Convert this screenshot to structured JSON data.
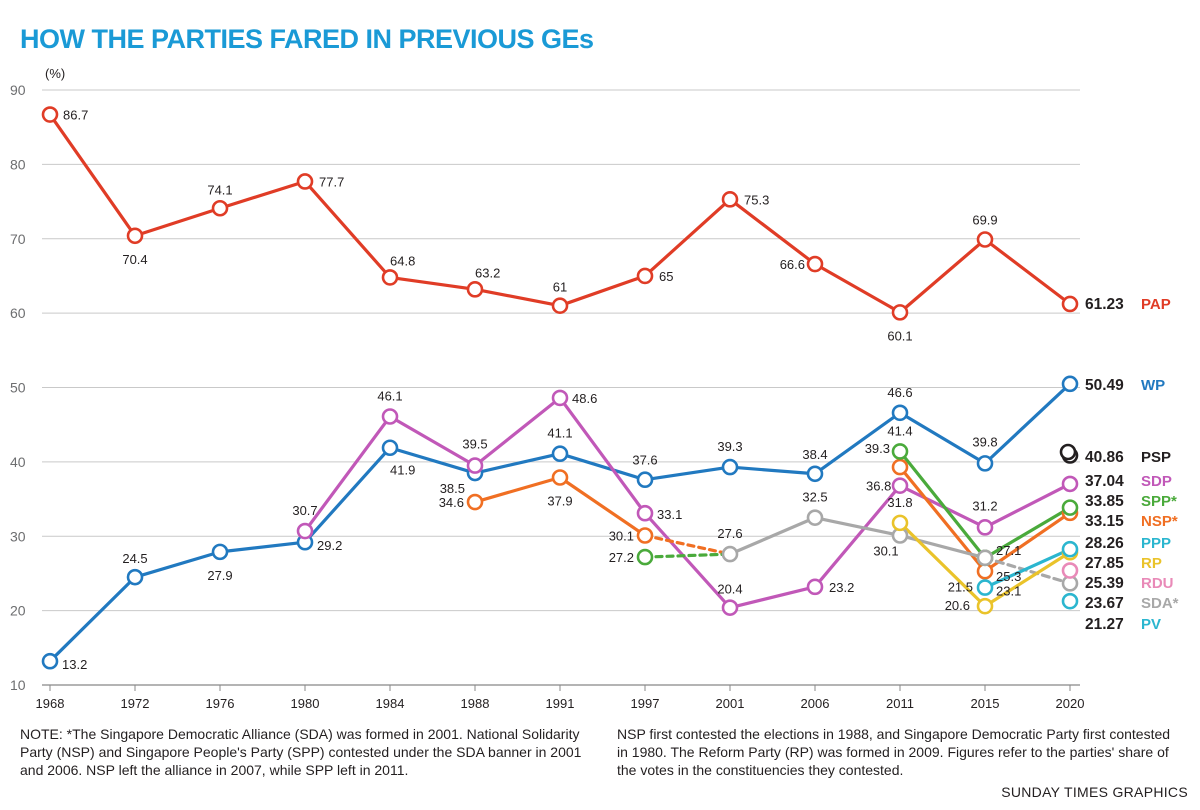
{
  "title": "HOW THE PARTIES FARED IN PREVIOUS GEs",
  "note_left": "NOTE: *The Singapore Democratic Alliance (SDA) was formed in 2001. National Solidarity Party (NSP) and Singapore People's Party (SPP) contested under the SDA banner in 2001 and 2006. NSP left the alliance in 2007, while SPP left in 2011.",
  "note_right": "NSP first contested the elections in 1988, and Singapore Democratic Party first contested in 1980. The Reform Party (RP) was formed in 2009. Figures refer to the parties' share of the votes in the constituencies they contested.",
  "credit": "SUNDAY TIMES GRAPHICS",
  "chart_data": {
    "type": "line",
    "title": "HOW THE PARTIES FARED IN PREVIOUS GEs",
    "ylabel": "(%)",
    "xlabel": "",
    "ylim": [
      10,
      90
    ],
    "yticks": [
      10,
      20,
      30,
      40,
      50,
      60,
      70,
      80,
      90
    ],
    "grid": true,
    "categories": [
      "1968",
      "1972",
      "1976",
      "1980",
      "1984",
      "1988",
      "1991",
      "1997",
      "2001",
      "2006",
      "2011",
      "2015",
      "2020"
    ],
    "series": [
      {
        "name": "PAP",
        "color": "#e03c26",
        "values": [
          86.7,
          70.4,
          74.1,
          77.7,
          64.8,
          63.2,
          61,
          65,
          75.3,
          66.6,
          60.1,
          69.9,
          61.23
        ],
        "labels": [
          "86.7",
          "70.4",
          "74.1",
          "77.7",
          "64.8",
          "63.2",
          "61",
          "65",
          "75.3",
          "66.6",
          "60.1",
          "69.9",
          null
        ]
      },
      {
        "name": "WP",
        "color": "#2179c0",
        "values": [
          13.2,
          24.5,
          27.9,
          29.2,
          41.9,
          38.5,
          41.1,
          37.6,
          39.3,
          38.4,
          46.6,
          39.8,
          50.49
        ],
        "labels": [
          "13.2",
          "24.5",
          "27.9",
          "29.2",
          "41.9",
          "38.5",
          "41.1",
          "37.6",
          "39.3",
          "38.4",
          "46.6",
          "39.8",
          null
        ]
      },
      {
        "name": "SDP",
        "color": "#c158b8",
        "values": [
          null,
          null,
          null,
          30.7,
          46.1,
          39.5,
          48.6,
          33.1,
          20.4,
          23.2,
          36.8,
          31.2,
          37.04
        ],
        "labels": [
          null,
          null,
          null,
          "30.7",
          "46.1",
          "39.5",
          "48.6",
          "33.1",
          "20.4",
          "23.2",
          "36.8",
          "31.2",
          null
        ]
      },
      {
        "name": "NSP*",
        "color": "#f06f23",
        "values": [
          null,
          null,
          null,
          null,
          null,
          34.6,
          37.9,
          30.1,
          27.6,
          null,
          39.3,
          25.3,
          33.15
        ],
        "labels": [
          null,
          null,
          null,
          null,
          null,
          "34.6",
          "37.9",
          "30.1",
          null,
          null,
          "39.3",
          "25.3",
          null
        ]
      },
      {
        "name": "SPP*",
        "color": "#4aaa3b",
        "values": [
          null,
          null,
          null,
          null,
          null,
          null,
          null,
          27.2,
          27.6,
          null,
          41.4,
          27.1,
          33.85
        ],
        "labels": [
          null,
          null,
          null,
          null,
          null,
          null,
          null,
          "27.2",
          null,
          null,
          "41.4",
          "27.1",
          null
        ]
      },
      {
        "name": "SDA*",
        "color": "#a8a8a8",
        "values": [
          null,
          null,
          null,
          null,
          null,
          null,
          null,
          null,
          27.6,
          32.5,
          30.1,
          27.1,
          23.67
        ],
        "labels": [
          null,
          null,
          null,
          null,
          null,
          null,
          null,
          null,
          "27.6",
          "32.5",
          "30.1",
          null,
          null
        ]
      },
      {
        "name": "RP",
        "color": "#eac32a",
        "values": [
          null,
          null,
          null,
          null,
          null,
          null,
          null,
          null,
          null,
          null,
          31.8,
          20.6,
          27.85
        ],
        "labels": [
          null,
          null,
          null,
          null,
          null,
          null,
          null,
          null,
          null,
          null,
          "31.8",
          "20.6",
          null
        ]
      },
      {
        "name": "PPP",
        "color": "#2bb6cf",
        "values": [
          null,
          null,
          null,
          null,
          null,
          null,
          null,
          null,
          null,
          null,
          null,
          23.1,
          28.26
        ],
        "labels": [
          null,
          null,
          null,
          null,
          null,
          null,
          null,
          null,
          null,
          null,
          null,
          "23.1",
          null
        ]
      },
      {
        "name": "RDU",
        "color": "#e98ab8",
        "values": [
          null,
          null,
          null,
          null,
          null,
          null,
          null,
          null,
          null,
          null,
          null,
          null,
          25.39
        ],
        "labels": [
          null,
          null,
          null,
          null,
          null,
          null,
          null,
          null,
          null,
          null,
          null,
          null,
          null
        ]
      },
      {
        "name": "PV",
        "color": "#2bb6cf",
        "values": [
          null,
          null,
          null,
          null,
          null,
          null,
          null,
          null,
          null,
          null,
          null,
          null,
          21.27
        ],
        "labels": [
          null,
          null,
          null,
          null,
          null,
          null,
          null,
          null,
          null,
          null,
          null,
          null,
          null
        ]
      },
      {
        "name": "PSP",
        "color": "#231f20",
        "values": [
          null,
          null,
          null,
          null,
          null,
          null,
          null,
          null,
          null,
          null,
          null,
          null,
          40.86
        ],
        "labels": [
          null,
          null,
          null,
          null,
          null,
          null,
          null,
          null,
          null,
          null,
          null,
          null,
          null
        ]
      }
    ],
    "extra_labels": [
      {
        "year": "2015",
        "value": 21.5,
        "text": "21.5"
      }
    ],
    "legend_2020": [
      {
        "value": "61.23",
        "name": "PAP",
        "color": "#e03c26"
      },
      {
        "value": "50.49",
        "name": "WP",
        "color": "#2179c0"
      },
      {
        "value": "40.86",
        "name": "PSP",
        "color": "#231f20"
      },
      {
        "value": "37.04",
        "name": "SDP",
        "color": "#c158b8"
      },
      {
        "value": "33.85",
        "name": "SPP*",
        "color": "#4aaa3b"
      },
      {
        "value": "33.15",
        "name": "NSP*",
        "color": "#f06f23"
      },
      {
        "value": "28.26",
        "name": "PPP",
        "color": "#2bb6cf"
      },
      {
        "value": "27.85",
        "name": "RP",
        "color": "#eac32a"
      },
      {
        "value": "25.39",
        "name": "RDU",
        "color": "#e98ab8"
      },
      {
        "value": "23.67",
        "name": "SDA*",
        "color": "#a8a8a8"
      },
      {
        "value": "21.27",
        "name": "PV",
        "color": "#2bb6cf"
      }
    ]
  }
}
